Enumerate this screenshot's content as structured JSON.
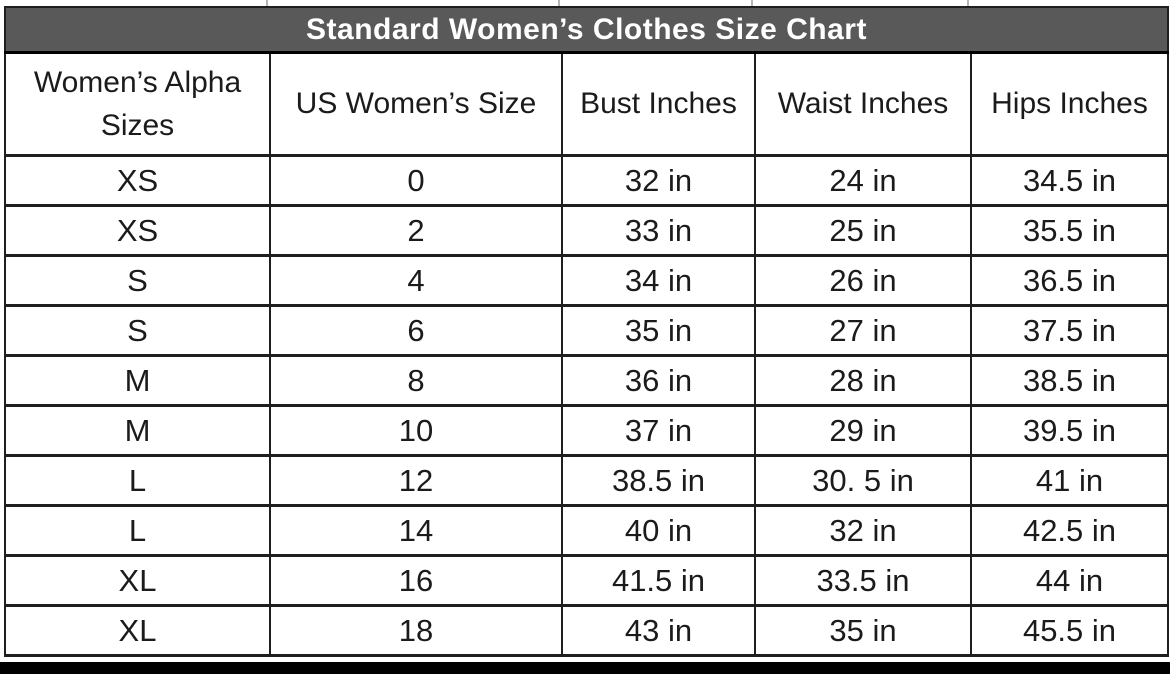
{
  "title": "Standard Women’s Clothes Size Chart",
  "chart_data": {
    "type": "table",
    "title": "Standard Women’s Clothes Size Chart",
    "columns": [
      "Women’s Alpha Sizes",
      "US Women’s Size",
      "Bust Inches",
      "Waist Inches",
      "Hips Inches"
    ],
    "rows": [
      [
        "XS",
        "0",
        "32 in",
        "24 in",
        "34.5 in"
      ],
      [
        "XS",
        "2",
        "33 in",
        "25 in",
        "35.5 in"
      ],
      [
        "S",
        "4",
        "34 in",
        "26 in",
        "36.5 in"
      ],
      [
        "S",
        "6",
        "35 in",
        "27 in",
        "37.5 in"
      ],
      [
        "M",
        "8",
        "36 in",
        "28 in",
        "38.5 in"
      ],
      [
        "M",
        "10",
        "37 in",
        "29 in",
        "39.5 in"
      ],
      [
        "L",
        "12",
        "38.5 in",
        "30. 5 in",
        "41 in"
      ],
      [
        "L",
        "14",
        "40 in",
        "32 in",
        "42.5 in"
      ],
      [
        "XL",
        "16",
        "41.5 in",
        "33.5 in",
        "44 in"
      ],
      [
        "XL",
        "18",
        "43 in",
        "35 in",
        "45.5 in"
      ]
    ]
  },
  "colors": {
    "title_bg": "#595959",
    "title_text": "#ffffff",
    "border": "#1f1f1f",
    "text": "#1b1b1b",
    "bottom_bar": "#000000"
  }
}
